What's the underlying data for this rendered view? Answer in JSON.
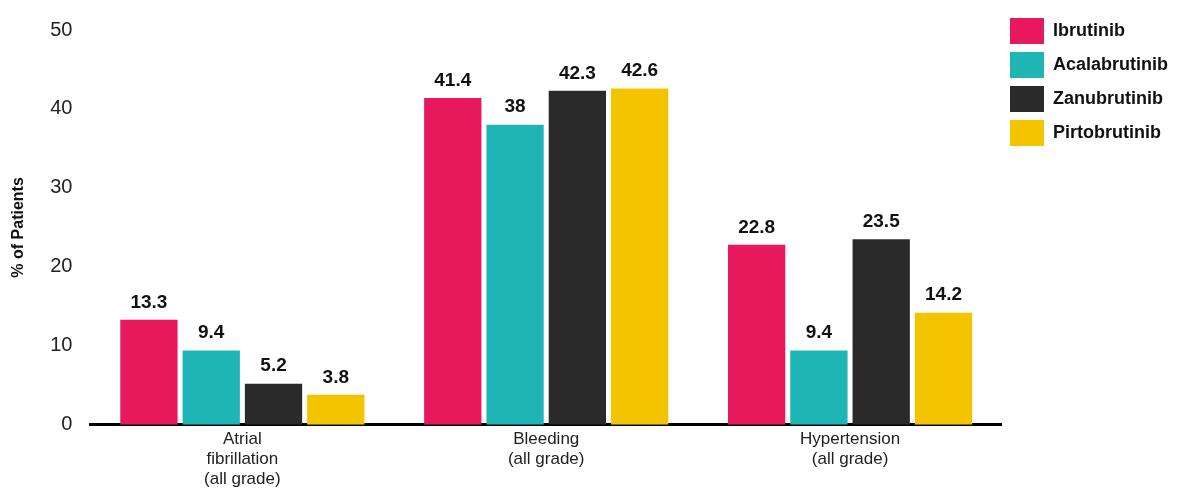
{
  "chart_data": {
    "type": "bar",
    "ylabel": "% of Patients",
    "categories": [
      "Atrial\nfibrillation\n(all grade)",
      "Bleeding\n(all grade)",
      "Hypertension\n(all grade)"
    ],
    "series": [
      {
        "name": "Ibrutinib",
        "color": "#e8185c",
        "values": [
          13.3,
          41.4,
          22.8
        ]
      },
      {
        "name": "Acalabrutinib",
        "color": "#1fb5b5",
        "values": [
          9.4,
          38,
          9.4
        ]
      },
      {
        "name": "Zanubrutinib",
        "color": "#2a2a2a",
        "values": [
          5.2,
          42.3,
          23.5
        ]
      },
      {
        "name": "Pirtobrutinib",
        "color": "#f5c400",
        "values": [
          3.8,
          42.6,
          14.2
        ]
      }
    ],
    "ylim": [
      0,
      50
    ],
    "yticks": [
      0,
      10,
      20,
      30,
      40,
      50
    ],
    "grid": false,
    "legend": "top right",
    "data_labels": true
  }
}
